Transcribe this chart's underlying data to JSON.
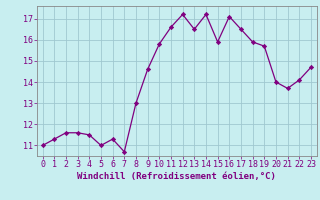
{
  "x": [
    0,
    1,
    2,
    3,
    4,
    5,
    6,
    7,
    8,
    9,
    10,
    11,
    12,
    13,
    14,
    15,
    16,
    17,
    18,
    19,
    20,
    21,
    22,
    23
  ],
  "y": [
    11.0,
    11.3,
    11.6,
    11.6,
    11.5,
    11.0,
    11.3,
    10.7,
    13.0,
    14.6,
    15.8,
    16.6,
    17.2,
    16.5,
    17.2,
    15.9,
    17.1,
    16.5,
    15.9,
    15.7,
    14.0,
    13.7,
    14.1,
    14.7
  ],
  "line_color": "#800080",
  "marker": "D",
  "marker_size": 2.2,
  "bg_color": "#c8eef0",
  "grid_color": "#a0c8d0",
  "xlabel": "Windchill (Refroidissement éolien,°C)",
  "ylim": [
    10.5,
    17.6
  ],
  "xlim": [
    -0.5,
    23.5
  ],
  "yticks": [
    11,
    12,
    13,
    14,
    15,
    16,
    17
  ],
  "xticks": [
    0,
    1,
    2,
    3,
    4,
    5,
    6,
    7,
    8,
    9,
    10,
    11,
    12,
    13,
    14,
    15,
    16,
    17,
    18,
    19,
    20,
    21,
    22,
    23
  ],
  "tick_color": "#800080",
  "label_fontsize": 6.5,
  "tick_fontsize": 6.0
}
